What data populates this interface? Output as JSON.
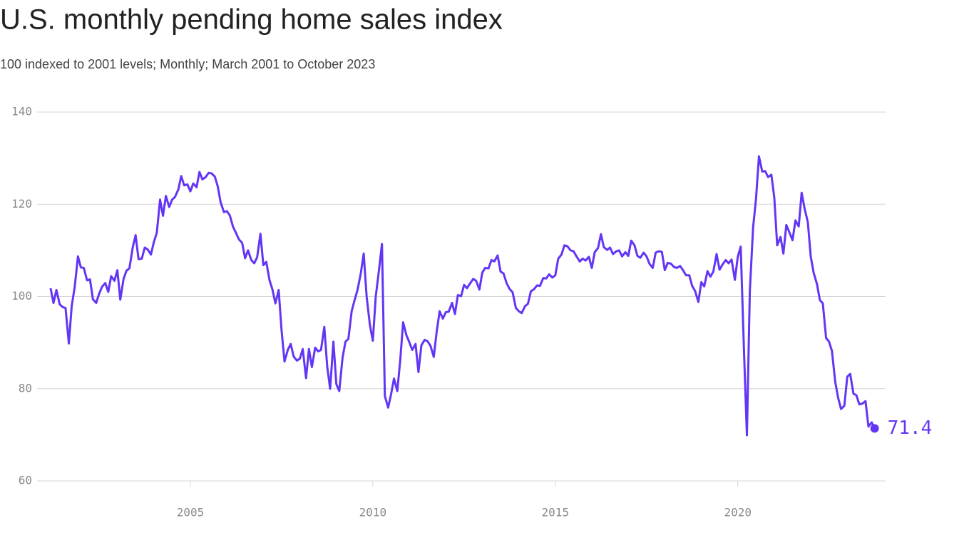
{
  "chart_data": {
    "type": "line",
    "title": "U.S. monthly pending home sales index",
    "subtitle": "100 indexed to 2001 levels; Monthly; March 2001 to October 2023",
    "x": [
      2001.17,
      2001.25,
      2001.33,
      2001.42,
      2001.5,
      2001.58,
      2001.67,
      2001.75,
      2001.83,
      2001.92,
      2002,
      2002.08,
      2002.17,
      2002.25,
      2002.33,
      2002.42,
      2002.5,
      2002.58,
      2002.67,
      2002.75,
      2002.83,
      2002.92,
      2003,
      2003.08,
      2003.17,
      2003.25,
      2003.33,
      2003.42,
      2003.5,
      2003.58,
      2003.67,
      2003.75,
      2003.83,
      2003.92,
      2004,
      2004.08,
      2004.17,
      2004.25,
      2004.33,
      2004.42,
      2004.5,
      2004.58,
      2004.67,
      2004.75,
      2004.83,
      2004.92,
      2005,
      2005.08,
      2005.17,
      2005.25,
      2005.33,
      2005.42,
      2005.5,
      2005.58,
      2005.67,
      2005.75,
      2005.83,
      2005.92,
      2006,
      2006.08,
      2006.17,
      2006.25,
      2006.33,
      2006.42,
      2006.5,
      2006.58,
      2006.67,
      2006.75,
      2006.83,
      2006.92,
      2007,
      2007.08,
      2007.17,
      2007.25,
      2007.33,
      2007.42,
      2007.5,
      2007.58,
      2007.67,
      2007.75,
      2007.83,
      2007.92,
      2008,
      2008.08,
      2008.17,
      2008.25,
      2008.33,
      2008.42,
      2008.5,
      2008.58,
      2008.67,
      2008.75,
      2008.83,
      2008.92,
      2009,
      2009.08,
      2009.17,
      2009.25,
      2009.33,
      2009.42,
      2009.5,
      2009.58,
      2009.67,
      2009.75,
      2009.83,
      2009.92,
      2010,
      2010.08,
      2010.17,
      2010.25,
      2010.33,
      2010.42,
      2010.5,
      2010.58,
      2010.67,
      2010.75,
      2010.83,
      2010.92,
      2011,
      2011.08,
      2011.17,
      2011.25,
      2011.33,
      2011.42,
      2011.5,
      2011.58,
      2011.67,
      2011.75,
      2011.83,
      2011.92,
      2012,
      2012.08,
      2012.17,
      2012.25,
      2012.33,
      2012.42,
      2012.5,
      2012.58,
      2012.67,
      2012.75,
      2012.83,
      2012.92,
      2013,
      2013.08,
      2013.17,
      2013.25,
      2013.33,
      2013.42,
      2013.5,
      2013.58,
      2013.67,
      2013.75,
      2013.83,
      2013.92,
      2014,
      2014.08,
      2014.17,
      2014.25,
      2014.33,
      2014.42,
      2014.5,
      2014.58,
      2014.67,
      2014.75,
      2014.83,
      2014.92,
      2015,
      2015.08,
      2015.17,
      2015.25,
      2015.33,
      2015.42,
      2015.5,
      2015.58,
      2015.67,
      2015.75,
      2015.83,
      2015.92,
      2016,
      2016.08,
      2016.17,
      2016.25,
      2016.33,
      2016.42,
      2016.5,
      2016.58,
      2016.67,
      2016.75,
      2016.83,
      2016.92,
      2017,
      2017.08,
      2017.17,
      2017.25,
      2017.33,
      2017.42,
      2017.5,
      2017.58,
      2017.67,
      2017.75,
      2017.83,
      2017.92,
      2018,
      2018.08,
      2018.17,
      2018.25,
      2018.33,
      2018.42,
      2018.5,
      2018.58,
      2018.67,
      2018.75,
      2018.83,
      2018.92,
      2019,
      2019.08,
      2019.17,
      2019.25,
      2019.33,
      2019.42,
      2019.5,
      2019.58,
      2019.67,
      2019.75,
      2019.83,
      2019.92,
      2020,
      2020.08,
      2020.17,
      2020.25,
      2020.33,
      2020.42,
      2020.5,
      2020.58,
      2020.67,
      2020.75,
      2020.83,
      2020.92,
      2021,
      2021.08,
      2021.17,
      2021.25,
      2021.33,
      2021.42,
      2021.5,
      2021.58,
      2021.67,
      2021.75,
      2021.83,
      2021.92,
      2022,
      2022.08,
      2022.17,
      2022.25,
      2022.33,
      2022.42,
      2022.5,
      2022.58,
      2022.67,
      2022.75,
      2022.83,
      2022.92,
      2023,
      2023.08,
      2023.17,
      2023.25,
      2023.33,
      2023.42,
      2023.5,
      2023.58,
      2023.67,
      2023.75
    ],
    "series": [
      {
        "color": "#6335f5",
        "values": [
          101.8,
          98.6,
          101.4,
          98.3,
          97.7,
          97.5,
          89.8,
          98,
          102,
          108.7,
          106.3,
          106.2,
          103.5,
          103.7,
          99.4,
          98.6,
          100.6,
          102.1,
          102.9,
          101,
          104.4,
          103.4,
          105.7,
          99.3,
          103.8,
          105.6,
          106.1,
          110.6,
          113.3,
          108.1,
          108.2,
          110.6,
          110.2,
          109.1,
          111.8,
          113.8,
          121,
          117.5,
          121.8,
          119.4,
          121,
          121.6,
          123.2,
          126.1,
          124.1,
          124.3,
          122.8,
          124.5,
          123.7,
          127,
          125.4,
          125.9,
          126.8,
          126.7,
          126,
          123.9,
          120.4,
          118.3,
          118.5,
          117.6,
          115.1,
          113.8,
          112.4,
          111.6,
          108.3,
          110,
          107.9,
          107.2,
          108.5,
          113.6,
          106.8,
          107.5,
          103.5,
          101.5,
          98.5,
          101.4,
          92.6,
          85.9,
          88.4,
          89.7,
          87,
          86.1,
          86.5,
          88.6,
          82.3,
          88.6,
          84.7,
          88.9,
          88.1,
          88.4,
          93.4,
          84.8,
          80,
          90.2,
          81,
          79.5,
          86.7,
          90.2,
          90.8,
          96.8,
          99.2,
          101.4,
          105,
          109.3,
          100,
          93.8,
          90.4,
          100,
          105.8,
          111.4,
          78.4,
          75.9,
          78.8,
          82.2,
          79.5,
          86.1,
          94.4,
          91.6,
          90.1,
          88.4,
          89.7,
          83.6,
          89.4,
          90.6,
          90.3,
          89.3,
          86.9,
          92.4,
          96.8,
          95.2,
          96.6,
          96.7,
          98.6,
          96.2,
          100.3,
          100.1,
          102.5,
          101.8,
          102.9,
          103.8,
          103.4,
          101.5,
          105.2,
          106.2,
          106.1,
          107.9,
          107.6,
          108.9,
          105.4,
          105,
          102.8,
          101.6,
          100.9,
          97.5,
          96.8,
          96.4,
          97.9,
          98.4,
          101.1,
          101.6,
          102.4,
          102.3,
          104,
          103.9,
          104.8,
          104.1,
          104.6,
          108.2,
          109.1,
          111.1,
          110.9,
          110,
          109.8,
          108.7,
          107.6,
          108.2,
          107.8,
          108.6,
          106.2,
          109.6,
          110.5,
          113.5,
          110.7,
          110.1,
          110.6,
          109.2,
          109.8,
          110,
          108.7,
          109.6,
          108.8,
          112.1,
          111.1,
          108.8,
          108.4,
          109.5,
          108.7,
          107.1,
          106.2,
          109.5,
          109.8,
          109.7,
          105.7,
          107.3,
          107.1,
          106.4,
          106.2,
          106.6,
          105.7,
          104.6,
          104.6,
          102.3,
          101.2,
          98.8,
          103.1,
          102.2,
          105.5,
          104.3,
          105.4,
          109.2,
          105.8,
          106.9,
          107.9,
          107.2,
          108,
          103.6,
          108.6,
          110.8,
          88.2,
          69.9,
          101.1,
          115,
          121.2,
          130.4,
          127.1,
          127.2,
          125.9,
          126.4,
          121.5,
          111.1,
          112.9,
          109.3,
          115.5,
          113.8,
          112.2,
          116.5,
          115.2,
          122.5,
          119.1,
          116.1,
          108.6,
          105.1,
          102.7,
          99.2,
          98.5,
          91,
          90.2,
          88.2,
          81.5,
          78,
          75.6,
          76.3,
          82.6,
          83.2,
          78.9,
          78.6,
          76.6,
          76.8,
          77.3,
          71.8,
          72.7,
          71.4
        ]
      }
    ],
    "xlim": [
      2000.8,
      2024.05
    ],
    "xticks": [
      2005,
      2010,
      2015,
      2020
    ],
    "ylim": [
      60,
      140
    ],
    "yticks": [
      60,
      80,
      100,
      120,
      140
    ],
    "grid": true
  }
}
